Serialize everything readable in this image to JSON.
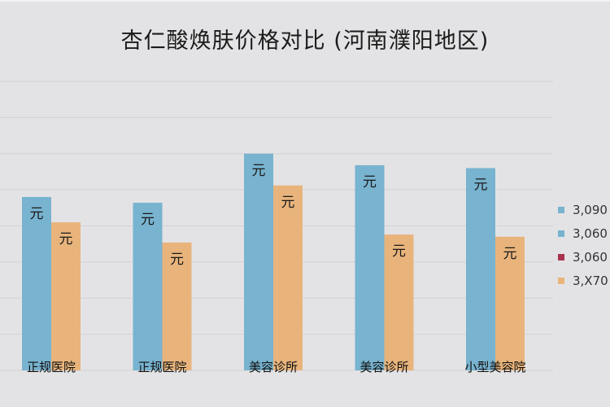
{
  "chart_data": {
    "type": "bar",
    "title": "杏仁酸焕肤价格对比 (河南濮阳地区)",
    "categories": [
      "正规医院",
      "正规医院",
      "美容诊所",
      "美容诊所",
      "小型美容院"
    ],
    "series": [
      {
        "color": "#78b3cf",
        "values": [
          2400,
          2320,
          3000,
          2840,
          2800
        ],
        "data_label": "元"
      },
      {
        "color": "#e8b47c",
        "values": [
          2050,
          1770,
          2560,
          1880,
          1850
        ],
        "data_label": "元"
      }
    ],
    "ylim": [
      0,
      4000
    ],
    "grid": true,
    "legend": {
      "position": "right",
      "entries": [
        {
          "text": "3,090",
          "color": "#78b3cf"
        },
        {
          "text": "3,060",
          "color": "#78b3cf"
        },
        {
          "text": "3,060",
          "color": "#a9334f"
        },
        {
          "text": "3,X70",
          "color": "#e8b47c"
        }
      ]
    }
  }
}
